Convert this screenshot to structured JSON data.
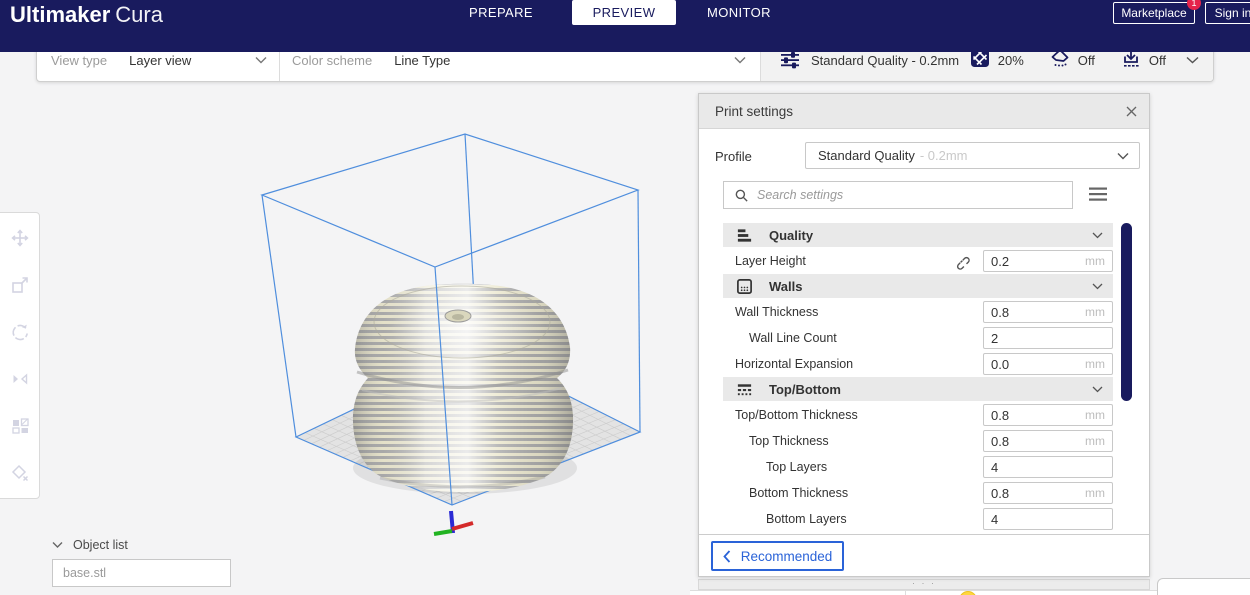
{
  "header": {
    "logo_bold": "Ultimaker",
    "logo_light": "Cura",
    "tabs": [
      {
        "label": "PREPARE",
        "active": false
      },
      {
        "label": "PREVIEW",
        "active": true
      },
      {
        "label": "MONITOR",
        "active": false
      }
    ],
    "marketplace": {
      "label": "Marketplace",
      "badge": "1"
    },
    "sign_in": "Sign in"
  },
  "stage_toolbar": {
    "view_type": {
      "label": "View type",
      "value": "Layer view"
    },
    "color_scheme": {
      "label": "Color scheme",
      "value": "Line Type"
    },
    "summary": {
      "profile": "Standard Quality - 0.2mm",
      "infill_percent": "20%",
      "support": "Off",
      "adhesion": "Off"
    }
  },
  "print_settings": {
    "title": "Print settings",
    "profile_label": "Profile",
    "profile_value": "Standard Quality",
    "profile_suffix": "- 0.2mm",
    "search_placeholder": "Search settings",
    "sections": [
      "Quality",
      "Walls",
      "Top/Bottom"
    ],
    "rows": [
      {
        "label": "Layer Height",
        "value": "0.2",
        "unit": "mm",
        "indent": 1,
        "linked": true
      },
      {
        "label": "Wall Thickness",
        "value": "0.8",
        "unit": "mm",
        "indent": 1
      },
      {
        "label": "Wall Line Count",
        "value": "2",
        "unit": "",
        "indent": 2
      },
      {
        "label": "Horizontal Expansion",
        "value": "0.0",
        "unit": "mm",
        "indent": 1
      },
      {
        "label": "Top/Bottom Thickness",
        "value": "0.8",
        "unit": "mm",
        "indent": 1
      },
      {
        "label": "Top Thickness",
        "value": "0.8",
        "unit": "mm",
        "indent": 2
      },
      {
        "label": "Top Layers",
        "value": "4",
        "unit": "",
        "indent": 3
      },
      {
        "label": "Bottom Thickness",
        "value": "0.8",
        "unit": "mm",
        "indent": 2
      },
      {
        "label": "Bottom Layers",
        "value": "4",
        "unit": "",
        "indent": 3
      }
    ],
    "recommended": "Recommended"
  },
  "object_list": {
    "label": "Object list",
    "file": "base.stl"
  },
  "ui": {
    "handle_dots": "· · ·"
  },
  "colors": {
    "navy": "#191b5e",
    "accent_blue": "#2a63d8",
    "wireframe_blue": "#4f8edd",
    "badge_red": "#e5244b",
    "stripe_gray": "#a3a3a3",
    "stripe_cream": "#e9e5c9",
    "axis_x_red": "#d42a2a",
    "axis_y_green": "#21b321",
    "axis_z_blue": "#2a2ad4",
    "support_yellow": "#ffd63f"
  },
  "icons": {
    "search": "magnifier",
    "close": "x-cross",
    "chevron_down": "v",
    "chevron_left": "<",
    "hamburger": "three-lines",
    "link": "chain",
    "profile_sliders": "sliders",
    "infill": "crosshatch-square",
    "support": "diamond-dots",
    "adhesion": "arrow-into-tray",
    "quality": "layer-bars",
    "walls": "square-dots",
    "top_bottom": "dashed-rows",
    "move": "arrows-cross",
    "scale": "square-arrow",
    "rotate": "circular-arrow",
    "mirror": "triangles",
    "per_model_settings": "squares",
    "support_blocker": "diamond-x"
  }
}
